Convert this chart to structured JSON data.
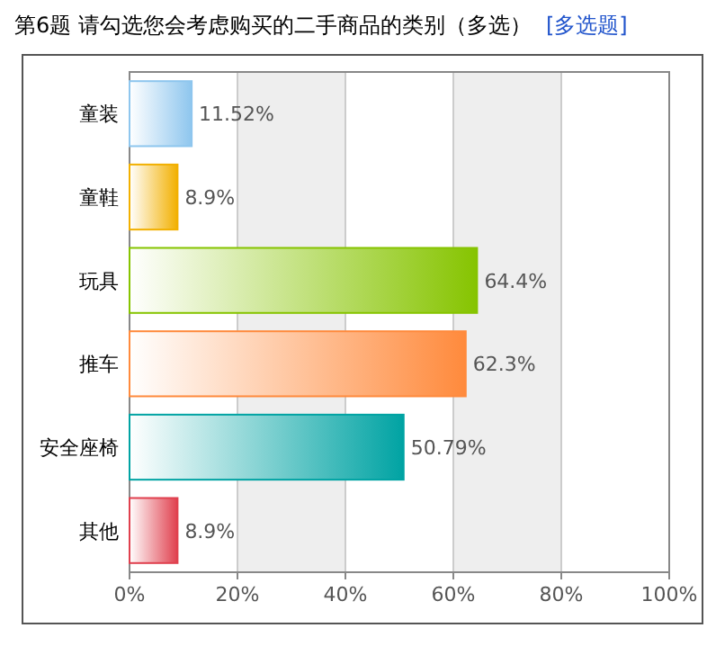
{
  "chart_data": {
    "type": "bar",
    "orientation": "horizontal",
    "title": "第6题  请勾选您会考虑购买的二手商品的类别（多选）",
    "subtitle": "[多选题]",
    "categories": [
      "童装",
      "童鞋",
      "玩具",
      "推车",
      "安全座椅",
      "其他"
    ],
    "values": [
      11.52,
      8.9,
      64.4,
      62.3,
      50.79,
      8.9
    ],
    "value_labels": [
      "11.52%",
      "8.9%",
      "64.4%",
      "62.3%",
      "50.79%",
      "8.9%"
    ],
    "colors": [
      "#8ec6ee",
      "#f2b000",
      "#86c400",
      "#ff8a3c",
      "#00a3a3",
      "#e0404e"
    ],
    "xlim": [
      0,
      100
    ],
    "xticks": [
      {
        "value": 0,
        "label": "0%"
      },
      {
        "value": 20,
        "label": "20%"
      },
      {
        "value": 40,
        "label": "40%"
      },
      {
        "value": 60,
        "label": "60%"
      },
      {
        "value": 80,
        "label": "80%"
      },
      {
        "value": 100,
        "label": "100%"
      }
    ],
    "grid": "x"
  }
}
